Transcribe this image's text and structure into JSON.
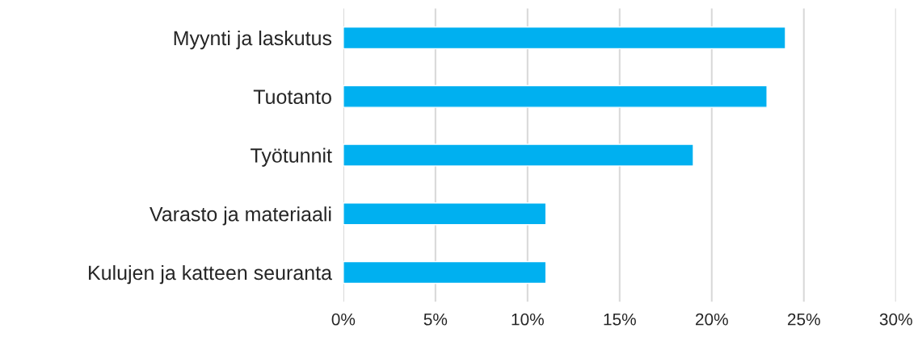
{
  "chart_data": {
    "type": "bar",
    "orientation": "horizontal",
    "categories": [
      "Myynti ja laskutus",
      "Tuotanto",
      "Työtunnit",
      "Varasto ja materiaali",
      "Kulujen ja katteen seuranta"
    ],
    "values": [
      24,
      23,
      19,
      11,
      11
    ],
    "color": "#00b0f0",
    "xlim": [
      0,
      30
    ],
    "xticks": [
      {
        "value": 0,
        "label": "0%"
      },
      {
        "value": 5,
        "label": "5%"
      },
      {
        "value": 10,
        "label": "10%"
      },
      {
        "value": 15,
        "label": "15%"
      },
      {
        "value": 20,
        "label": "20%"
      },
      {
        "value": 25,
        "label": "25%"
      },
      {
        "value": 30,
        "label": "30%"
      }
    ],
    "grid": "x",
    "legend": false
  }
}
